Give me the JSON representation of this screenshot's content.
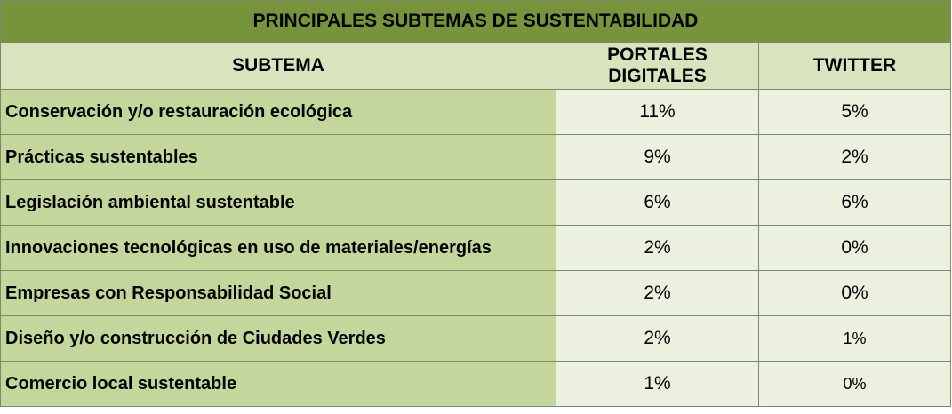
{
  "chart_data": {
    "type": "table",
    "title": "PRINCIPALES SUBTEMAS DE  SUSTENTABILIDAD",
    "columns": [
      "SUBTEMA",
      "PORTALES DIGITALES",
      "TWITTER"
    ],
    "rows": [
      {
        "subtema": "Conservación y/o restauración ecológica",
        "portales": "11%",
        "twitter": "5%"
      },
      {
        "subtema": "Prácticas sustentables",
        "portales": "9%",
        "twitter": "2%"
      },
      {
        "subtema": "Legislación ambiental sustentable",
        "portales": "6%",
        "twitter": "6%"
      },
      {
        "subtema": "Innovaciones tecnológicas en uso de materiales/energías",
        "portales": "2%",
        "twitter": "0%"
      },
      {
        "subtema": "Empresas con Responsabilidad Social",
        "portales": "2%",
        "twitter": "0%"
      },
      {
        "subtema": "Diseño y/o construcción de Ciudades Verdes",
        "portales": "2%",
        "twitter": "1%"
      },
      {
        "subtema": "Comercio local sustentable",
        "portales": "1%",
        "twitter": "0%"
      }
    ]
  }
}
